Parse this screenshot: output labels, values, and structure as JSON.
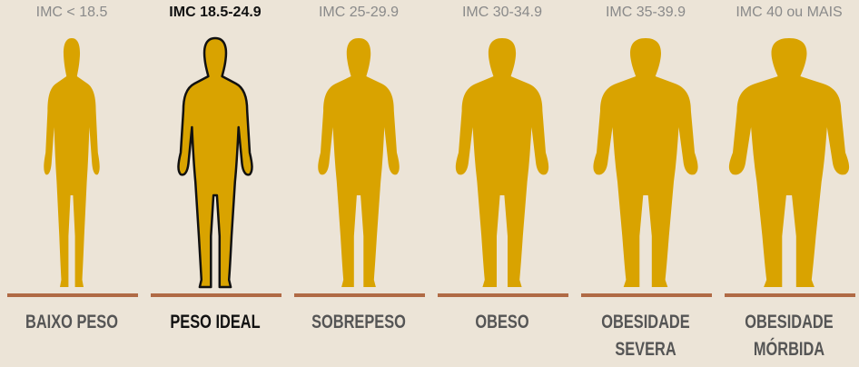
{
  "accent_color": "#d9a300",
  "bar_color": "#b06a45",
  "categories": [
    {
      "range": "IMC < 18.5",
      "label_lines": [
        "BAIXO PESO"
      ],
      "highlighted": false,
      "build": "thin"
    },
    {
      "range": "IMC 18.5-24.9",
      "label_lines": [
        "PESO IDEAL"
      ],
      "highlighted": true,
      "build": "ideal"
    },
    {
      "range": "IMC 25-29.9",
      "label_lines": [
        "SOBREPESO"
      ],
      "highlighted": false,
      "build": "overweight"
    },
    {
      "range": "IMC 30-34.9",
      "label_lines": [
        "OBESO"
      ],
      "highlighted": false,
      "build": "obese"
    },
    {
      "range": "IMC 35-39.9",
      "label_lines": [
        "OBESIDADE",
        "SEVERA"
      ],
      "highlighted": false,
      "build": "severe"
    },
    {
      "range": "IMC 40 ou MAIS",
      "label_lines": [
        "OBESIDADE",
        "MÓRBIDA"
      ],
      "highlighted": false,
      "build": "morbid"
    }
  ]
}
